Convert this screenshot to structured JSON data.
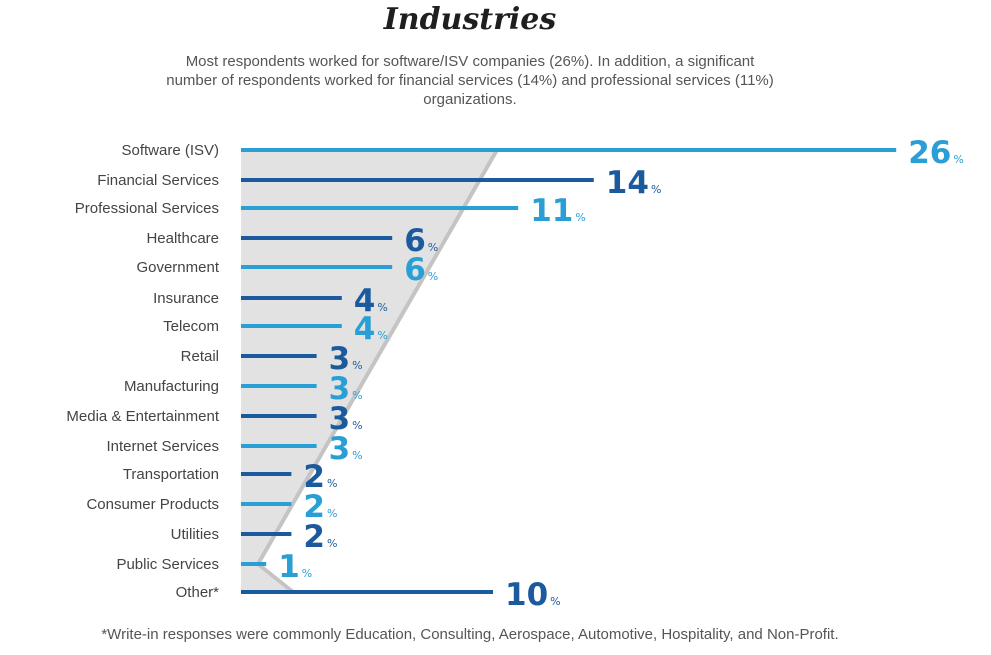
{
  "title": "Industries",
  "subtitle": "Most respondents worked for software/ISV companies (26%). In addition, a significant number of respondents worked for financial services (14%) and professional services (11%) organizations.",
  "footnote": "*Write-in responses were commonly Education, Consulting, Aerospace, Automotive, Hospitality, and Non-Profit.",
  "colors": {
    "dark": "#1c5a9e",
    "light": "#2a9fd6",
    "wedge_fill": "#e2e2e2",
    "wedge_edge": "#c4c4c4",
    "label": "#444444"
  },
  "chart_data": {
    "type": "bar",
    "orientation": "horizontal",
    "unit": "%",
    "categories": [
      "Software (ISV)",
      "Financial Services",
      "Professional Services",
      "Healthcare",
      "Government",
      "Insurance",
      "Telecom",
      "Retail",
      "Manufacturing",
      "Media & Entertainment",
      "Internet Services",
      "Transportation",
      "Consumer Products",
      "Utilities",
      "Public Services",
      "Other*"
    ],
    "values": [
      26,
      14,
      11,
      6,
      6,
      4,
      4,
      3,
      3,
      3,
      3,
      2,
      2,
      2,
      1,
      10
    ],
    "data_labels": [
      "26",
      "14",
      "11",
      "6",
      "6",
      "4",
      "4",
      "3",
      "3",
      "3",
      "3",
      "2",
      "2",
      "2",
      "1",
      "10"
    ],
    "bar_colors": [
      "light",
      "dark",
      "light",
      "dark",
      "light",
      "dark",
      "light",
      "dark",
      "light",
      "dark",
      "light",
      "dark",
      "light",
      "dark",
      "light",
      "dark"
    ],
    "xlim": [
      0,
      28
    ],
    "title": "Industries",
    "xlabel": "",
    "ylabel": "",
    "legend": "none",
    "grid": false
  }
}
